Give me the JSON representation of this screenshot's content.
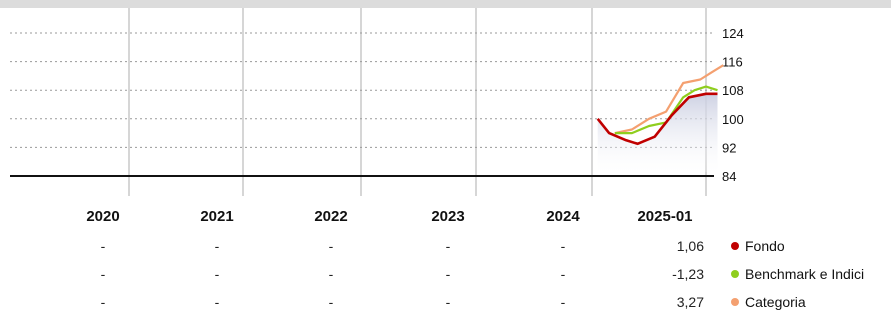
{
  "chart_data": {
    "type": "line",
    "years": [
      "2020",
      "2021",
      "2022",
      "2023",
      "2024",
      "2025-01"
    ],
    "y_ticks": [
      "124",
      "116",
      "108",
      "100",
      "92",
      "84"
    ],
    "ylim": [
      84,
      124
    ],
    "grid": true,
    "series": [
      {
        "name": "Fondo",
        "color": "#c00000",
        "x": [
          2024.05,
          2024.15,
          2024.3,
          2024.4,
          2024.55,
          2024.7,
          2024.85,
          2025.0,
          2025.1
        ],
        "y": [
          100,
          96,
          94,
          93,
          95,
          101,
          106,
          107,
          107
        ]
      },
      {
        "name": "Benchmark e Indici",
        "color": "#8fce1e",
        "x": [
          2024.2,
          2024.35,
          2024.5,
          2024.65,
          2024.8,
          2024.9,
          2025.0,
          2025.1
        ],
        "y": [
          96,
          96,
          98,
          99,
          106,
          108,
          109,
          108
        ]
      },
      {
        "name": "Categoria",
        "color": "#f4a070",
        "x": [
          2024.2,
          2024.35,
          2024.5,
          2024.65,
          2024.8,
          2024.95,
          2025.05,
          2025.15
        ],
        "y": [
          96,
          97,
          100,
          102,
          110,
          111,
          113,
          115
        ]
      }
    ],
    "table": {
      "rows": [
        {
          "legend": "Fondo",
          "color": "#c00000",
          "values": [
            "-",
            "-",
            "-",
            "-",
            "-",
            "1,06"
          ]
        },
        {
          "legend": "Benchmark e Indici",
          "color": "#8fce1e",
          "values": [
            "-",
            "-",
            "-",
            "-",
            "-",
            "-1,23"
          ]
        },
        {
          "legend": "Categoria",
          "color": "#f4a070",
          "values": [
            "-",
            "-",
            "-",
            "-",
            "-",
            "3,27"
          ]
        }
      ]
    }
  }
}
